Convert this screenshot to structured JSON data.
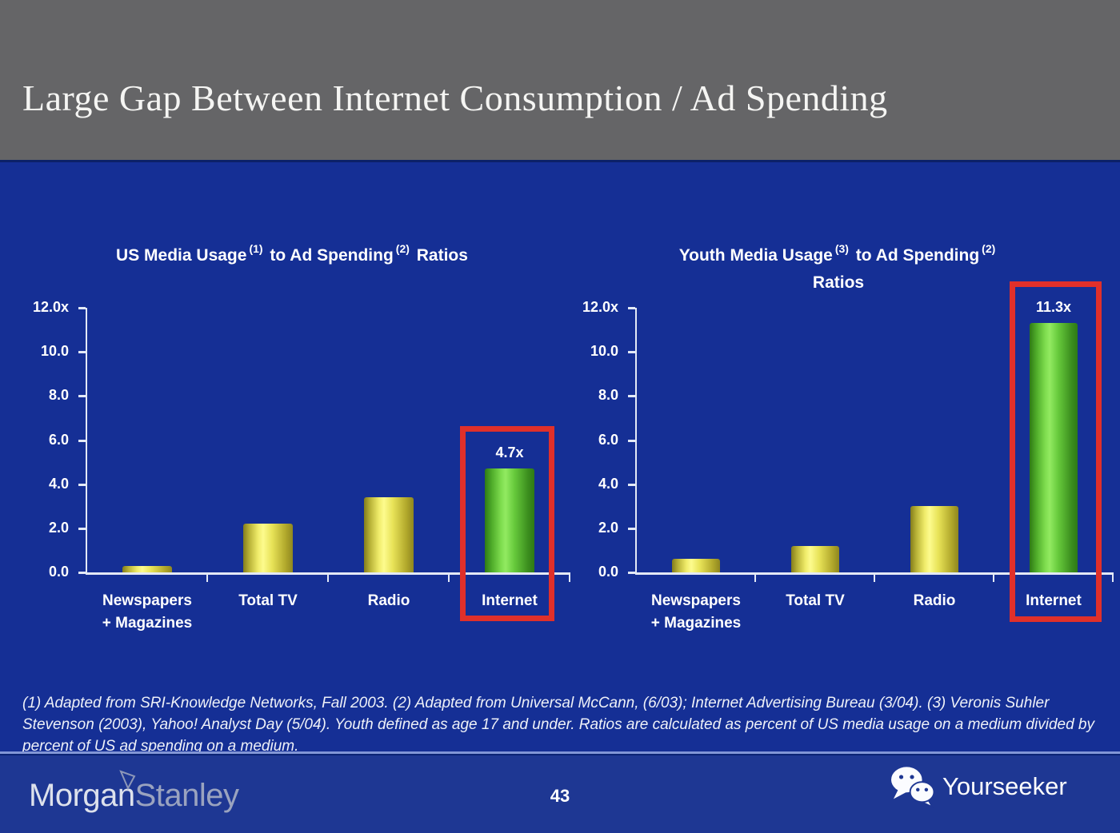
{
  "slide": {
    "title": "Large Gap Between Internet Consumption / Ad Spending",
    "page_number": "43",
    "footnote": "(1) Adapted from SRI-Knowledge Networks, Fall 2003.  (2) Adapted from Universal McCann, (6/03); Internet Advertising Bureau (3/04). (3) Veronis Suhler Stevenson (2003), Yahoo! Analyst Day (5/04).  Youth defined as age 17 and under.  Ratios are calculated as percent of US media usage on a medium divided by percent of US ad spending on a medium.",
    "brand": {
      "part1": "Morgan",
      "part2": "Stanley"
    },
    "watermark": {
      "label": "Yourseeker",
      "icon": "wechat-icon"
    }
  },
  "colors": {
    "header_gray": "#656567",
    "slide_blue": "#152f95",
    "footer_blue": "#1e3793",
    "bar_yellow": "#f0ec6a",
    "bar_green": "#7fdd4f",
    "highlight_red": "#e0302a",
    "axis_white": "#e3e9f6"
  },
  "chart_data": [
    {
      "type": "bar",
      "title": "US Media Usage (1) to Ad Spending (2) Ratios",
      "title_parts": {
        "lead": "US Media Usage",
        "sup_a": "(1)",
        "mid": "to Ad Spending",
        "sup_b": "(2)",
        "tail": "Ratios"
      },
      "categories": [
        "Newspapers\n+ Magazines",
        "Total TV",
        "Radio",
        "Internet"
      ],
      "values": [
        0.3,
        2.2,
        3.4,
        4.7
      ],
      "bar_colors": [
        "yellow",
        "yellow",
        "yellow",
        "green"
      ],
      "data_labels": [
        "",
        "",
        "",
        "4.7x"
      ],
      "ytick_labels": [
        "12.0x",
        "10.0",
        "8.0",
        "6.0",
        "4.0",
        "2.0",
        "0.0"
      ],
      "ylim": [
        0,
        12
      ],
      "grid": false,
      "highlighted_category": "Internet"
    },
    {
      "type": "bar",
      "title": "Youth Media Usage (3) to Ad Spending (2) Ratios",
      "title_parts": {
        "lead": "Youth Media Usage",
        "sup_a": "(3)",
        "mid": "to Ad Spending",
        "sup_b": "(2)",
        "tail": "Ratios"
      },
      "categories": [
        "Newspapers\n+ Magazines",
        "Total TV",
        "Radio",
        "Internet"
      ],
      "values": [
        0.6,
        1.2,
        3.0,
        11.3
      ],
      "bar_colors": [
        "yellow",
        "yellow",
        "yellow",
        "green"
      ],
      "data_labels": [
        "",
        "",
        "",
        "11.3x"
      ],
      "ytick_labels": [
        "12.0x",
        "10.0",
        "8.0",
        "6.0",
        "4.0",
        "2.0",
        "0.0"
      ],
      "ylim": [
        0,
        12
      ],
      "grid": false,
      "highlighted_category": "Internet"
    }
  ]
}
